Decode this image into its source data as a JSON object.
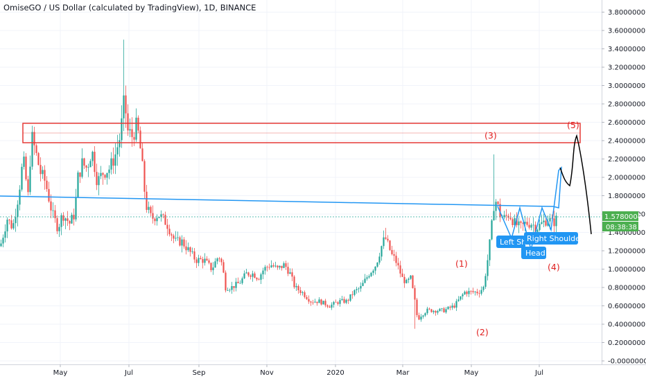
{
  "chart_data": {
    "type": "candlestick",
    "title": "OmiseGO / US Dollar (calculated by TradingView), 1D, BINANCE",
    "ylim": [
      0,
      3.9
    ],
    "y_ticks": [
      "3.8000000",
      "3.6000000",
      "3.4000000",
      "3.2000000",
      "3.0000000",
      "2.8000000",
      "2.6000000",
      "2.4000000",
      "2.2000000",
      "2.0000000",
      "1.8000000",
      "1.6000000",
      "1.4000000",
      "1.2000000",
      "1.0000000",
      "0.8000000",
      "0.6000000",
      "0.4000000",
      "0.2000000",
      "-0.0000000"
    ],
    "x_ticks": [
      "May",
      "Jul",
      "Sep",
      "Nov",
      "2020",
      "Mar",
      "May",
      "Jul"
    ],
    "last_price": "1.5780004",
    "countdown": "08:38:38",
    "grid": true,
    "colors": {
      "up": "#26a69a",
      "down": "#ef5350",
      "zone": "#e53935",
      "trend": "#2196f3",
      "label_bg": "#2196f3",
      "price_bg": "#4caf50",
      "wave": "#e01e1e"
    },
    "path_points": [
      [
        0,
        1.25
      ],
      [
        10,
        1.55
      ],
      [
        18,
        1.45
      ],
      [
        26,
        1.8
      ],
      [
        33,
        2.2
      ],
      [
        40,
        1.8
      ],
      [
        45,
        2.45
      ],
      [
        50,
        2.3
      ],
      [
        58,
        2.05
      ],
      [
        65,
        1.95
      ],
      [
        75,
        1.6
      ],
      [
        83,
        1.45
      ],
      [
        90,
        1.6
      ],
      [
        100,
        1.5
      ],
      [
        107,
        1.6
      ],
      [
        112,
        2.0
      ],
      [
        118,
        2.15
      ],
      [
        125,
        2.1
      ],
      [
        132,
        2.3
      ],
      [
        140,
        1.95
      ],
      [
        148,
        2.05
      ],
      [
        158,
        2.1
      ],
      [
        166,
        2.25
      ],
      [
        173,
        2.45
      ],
      [
        179,
        2.85
      ],
      [
        184,
        2.5
      ],
      [
        190,
        2.45
      ],
      [
        196,
        2.55
      ],
      [
        200,
        2.45
      ],
      [
        205,
        2.1
      ],
      [
        210,
        1.7
      ],
      [
        218,
        1.55
      ],
      [
        228,
        1.6
      ],
      [
        240,
        1.5
      ],
      [
        252,
        1.3
      ],
      [
        262,
        1.3
      ],
      [
        272,
        1.2
      ],
      [
        282,
        1.1
      ],
      [
        294,
        1.1
      ],
      [
        305,
        1.0
      ],
      [
        315,
        1.15
      ],
      [
        320,
        1.05
      ],
      [
        325,
        0.8
      ],
      [
        333,
        0.8
      ],
      [
        345,
        0.85
      ],
      [
        355,
        0.95
      ],
      [
        365,
        0.95
      ],
      [
        372,
        0.9
      ],
      [
        380,
        1.0
      ],
      [
        390,
        1.05
      ],
      [
        400,
        1.0
      ],
      [
        410,
        1.05
      ],
      [
        418,
        0.95
      ],
      [
        425,
        0.8
      ],
      [
        435,
        0.75
      ],
      [
        448,
        0.65
      ],
      [
        460,
        0.65
      ],
      [
        475,
        0.6
      ],
      [
        490,
        0.65
      ],
      [
        500,
        0.65
      ],
      [
        510,
        0.75
      ],
      [
        520,
        0.8
      ],
      [
        532,
        0.95
      ],
      [
        542,
        1.05
      ],
      [
        550,
        1.25
      ],
      [
        555,
        1.35
      ],
      [
        560,
        1.25
      ],
      [
        565,
        1.15
      ],
      [
        570,
        1.1
      ],
      [
        575,
        1.0
      ],
      [
        580,
        0.9
      ],
      [
        586,
        0.85
      ],
      [
        592,
        0.9
      ],
      [
        598,
        0.65
      ],
      [
        602,
        0.45
      ],
      [
        607,
        0.5
      ],
      [
        615,
        0.55
      ],
      [
        625,
        0.55
      ],
      [
        640,
        0.55
      ],
      [
        655,
        0.6
      ],
      [
        670,
        0.75
      ],
      [
        680,
        0.75
      ],
      [
        690,
        0.75
      ],
      [
        697,
        0.8
      ],
      [
        703,
        1.1
      ],
      [
        708,
        1.4
      ],
      [
        712,
        1.7
      ],
      [
        716,
        1.75
      ],
      [
        720,
        1.6
      ],
      [
        726,
        1.55
      ],
      [
        734,
        1.6
      ],
      [
        742,
        1.5
      ],
      [
        750,
        1.45
      ],
      [
        758,
        1.5
      ],
      [
        766,
        1.5
      ],
      [
        774,
        1.45
      ],
      [
        782,
        1.5
      ],
      [
        790,
        1.55
      ],
      [
        797,
        1.5
      ],
      [
        803,
        1.55
      ]
    ]
  },
  "annotations": {
    "waves": [
      "(1)",
      "(2)",
      "(3)",
      "(4)",
      "(5)"
    ],
    "labels": {
      "left": "Left Sh",
      "right": "Right Shoulder",
      "head": "Head"
    }
  }
}
